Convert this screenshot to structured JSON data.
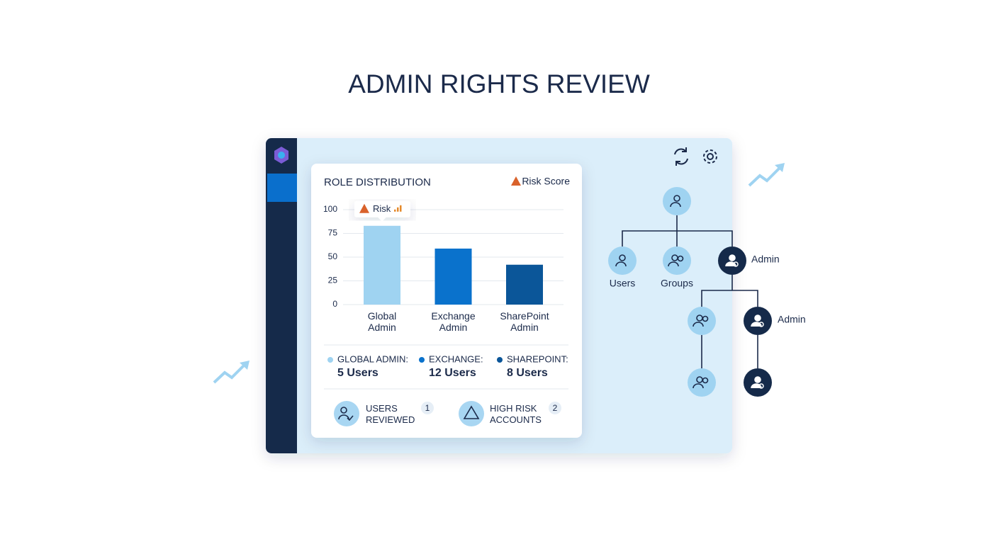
{
  "title": "ADMIN RIGHTS REVIEW",
  "role_distribution": {
    "type": "bar",
    "title": "ROLE DISTRIBUTION",
    "annotation": "Risk Score",
    "tooltip": "Risk",
    "categories": [
      "Global Admin",
      "Exchange Admin",
      "SharePoint Admin"
    ],
    "values": [
      83,
      59,
      42
    ],
    "colors": [
      "#9fd3f1",
      "#0a72cc",
      "#0b5699"
    ],
    "ylim": [
      0,
      100
    ],
    "yticks": [
      0,
      25,
      50,
      75,
      100
    ],
    "grid": true
  },
  "legend": [
    {
      "label": "GLOBAL ADMIN:",
      "count": "5 Users"
    },
    {
      "label": "EXCHANGE:",
      "count": "12 Users"
    },
    {
      "label": "SHAREPOINT:",
      "count": "8 Users"
    }
  ],
  "summary": [
    {
      "label": "USERS REVIEWED",
      "badge": 1
    },
    {
      "label": "HIGH RISK ACCOUNTS",
      "badge": 2
    }
  ],
  "tree": {
    "users": "Users",
    "groups": "Groups",
    "admin": "Admin",
    "sub_admin": "Admin"
  }
}
